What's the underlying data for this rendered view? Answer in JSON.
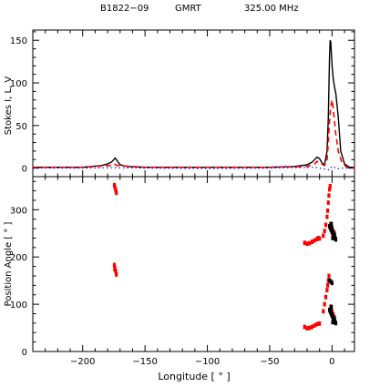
{
  "header": {
    "pulsar": "B1822−09",
    "telescope": "GMRT",
    "frequency": "325.00 MHz"
  },
  "chart_data": [
    {
      "type": "line",
      "panel": "top",
      "xlabel": "",
      "ylabel": "Stokes I, L, V",
      "xlim": [
        -240,
        18
      ],
      "ylim": [
        -10,
        162
      ],
      "x_ticks": [
        -200,
        -150,
        -100,
        -50,
        0
      ],
      "y_ticks": [
        0,
        50,
        100,
        150
      ],
      "series": [
        {
          "style": "solid",
          "color": "#000000",
          "x": [
            -240,
            -200,
            -185,
            -180,
            -177,
            -175,
            -174,
            -172,
            -170,
            -165,
            -150,
            -100,
            -50,
            -30,
            -20,
            -16,
            -14,
            -12,
            -10,
            -8,
            -6,
            -4,
            -3,
            -2,
            -1.5,
            -1,
            0,
            1,
            2,
            3,
            5,
            7,
            10,
            14,
            18
          ],
          "y": [
            1,
            1,
            3,
            5,
            7,
            10,
            12,
            8,
            4,
            2,
            1,
            1,
            1,
            2,
            4,
            7,
            10,
            13,
            11,
            6,
            4,
            20,
            60,
            130,
            150,
            148,
            120,
            105,
            95,
            88,
            60,
            20,
            5,
            1,
            1
          ]
        },
        {
          "style": "dashed",
          "color": "#ff0000",
          "x": [
            -240,
            -200,
            -178,
            -175,
            -172,
            -150,
            -100,
            -50,
            -20,
            -14,
            -12,
            -10,
            -6,
            -4,
            -3,
            -2,
            -1,
            0,
            1,
            2,
            3,
            5,
            8,
            12,
            18
          ],
          "y": [
            1,
            1,
            3,
            5,
            3,
            1,
            1,
            1,
            2,
            5,
            8,
            6,
            3,
            10,
            30,
            55,
            72,
            80,
            70,
            55,
            40,
            20,
            6,
            1,
            1
          ]
        },
        {
          "style": "dotted",
          "color": "#0000ff",
          "x": [
            -240,
            -200,
            -175,
            -150,
            -100,
            -50,
            -14,
            -6,
            -2,
            0,
            2,
            4,
            8,
            18
          ],
          "y": [
            0,
            0,
            0.5,
            0,
            -0.5,
            0,
            1,
            -1,
            -2,
            2,
            1,
            -1,
            0,
            0
          ]
        }
      ]
    },
    {
      "type": "scatter",
      "panel": "bottom",
      "xlabel": "Longitude [ ° ]",
      "ylabel": "Position Angle [ ° ]",
      "xlim": [
        -240,
        18
      ],
      "ylim": [
        0,
        370
      ],
      "x_ticks": [
        -200,
        -150,
        -100,
        -50,
        0
      ],
      "y_ticks": [
        0,
        100,
        200,
        300
      ],
      "series": [
        {
          "name": "",
          "color": "#ff0000",
          "points": [
            [
              -174.6,
              352
            ],
            [
              -174.1,
              347
            ],
            [
              -173.5,
              341
            ],
            [
              -173.0,
              336
            ],
            [
              -174.6,
              183
            ],
            [
              -174.1,
              177
            ],
            [
              -173.5,
              170
            ],
            [
              -173.0,
              163
            ],
            [
              -174.3,
              174
            ],
            [
              -22,
              230
            ],
            [
              -20,
              228
            ],
            [
              -18,
              229
            ],
            [
              -16,
              232
            ],
            [
              -14,
              235
            ],
            [
              -12,
              238
            ],
            [
              -11,
              240
            ],
            [
              -10,
              239
            ],
            [
              -22,
              52
            ],
            [
              -20,
              49
            ],
            [
              -18,
              50
            ],
            [
              -16,
              52
            ],
            [
              -14,
              55
            ],
            [
              -12,
              58
            ],
            [
              -10,
              59
            ],
            [
              -7,
              245
            ],
            [
              -6,
              255
            ],
            [
              -5,
              268
            ],
            [
              -4,
              285
            ],
            [
              -3.5,
              298
            ],
            [
              -3,
              315
            ],
            [
              -2.5,
              330
            ],
            [
              -2,
              343
            ],
            [
              -1.5,
              350
            ],
            [
              -7,
              85
            ],
            [
              -6,
              100
            ],
            [
              -5,
              115
            ],
            [
              -4,
              130
            ],
            [
              -3.5,
              140
            ],
            [
              -3,
              150
            ],
            [
              -2.5,
              160
            ],
            [
              -1,
              270
            ],
            [
              0,
              262
            ],
            [
              1,
              255
            ],
            [
              2,
              250
            ],
            [
              -1,
              95
            ],
            [
              0,
              85
            ],
            [
              1,
              78
            ],
            [
              2,
              72
            ]
          ]
        },
        {
          "name": "",
          "color": "#000000",
          "points": [
            [
              -2,
              265
            ],
            [
              -1.5,
              262
            ],
            [
              -1,
              259
            ],
            [
              -0.5,
              256
            ],
            [
              0,
              253
            ],
            [
              0.5,
              250
            ],
            [
              1,
              248
            ],
            [
              1.5,
              245
            ],
            [
              2,
              242
            ],
            [
              2.5,
              240
            ],
            [
              3,
              237
            ],
            [
              -1,
              268
            ],
            [
              0,
              260
            ],
            [
              1,
              252
            ],
            [
              2,
              246
            ],
            [
              0.5,
              240
            ],
            [
              -0.5,
              270
            ],
            [
              -2,
              88
            ],
            [
              -1.5,
              85
            ],
            [
              -1,
              82
            ],
            [
              -0.5,
              79
            ],
            [
              0,
              76
            ],
            [
              0.5,
              73
            ],
            [
              1,
              70
            ],
            [
              1.5,
              68
            ],
            [
              2,
              65
            ],
            [
              2.5,
              62
            ],
            [
              3,
              60
            ],
            [
              -1,
              90
            ],
            [
              0,
              80
            ],
            [
              1,
              72
            ],
            [
              2,
              68
            ],
            [
              0.5,
              62
            ],
            [
              -0.5,
              94
            ],
            [
              -2,
              150
            ],
            [
              -1,
              148
            ],
            [
              0,
              145
            ]
          ]
        }
      ]
    }
  ]
}
